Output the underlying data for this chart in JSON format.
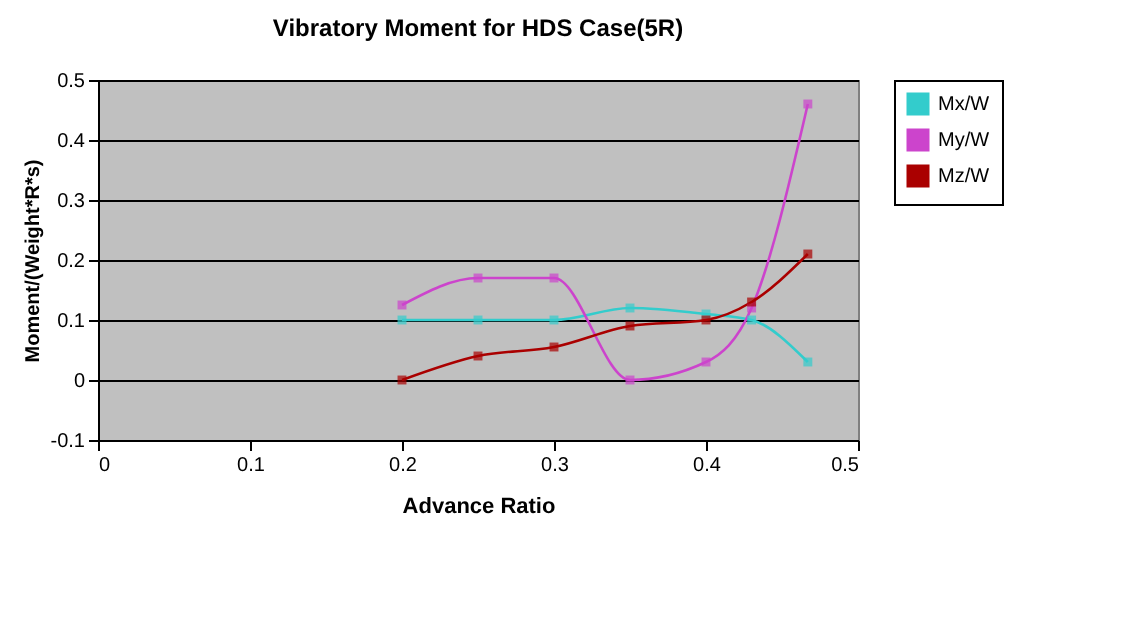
{
  "chart_data": {
    "type": "line",
    "title": "Vibratory Moment for HDS Case(5R)",
    "xlabel": "Advance Ratio",
    "ylabel": "Moment/(Weight*R*s)",
    "x": [
      0.2,
      0.25,
      0.3,
      0.35,
      0.4,
      0.43,
      0.467
    ],
    "series": [
      {
        "name": "Mx/W",
        "color": "#33cccc",
        "values": [
          0.1,
          0.1,
          0.1,
          0.12,
          0.11,
          0.1,
          0.03
        ]
      },
      {
        "name": "My/W",
        "color": "#cc44cc",
        "values": [
          0.125,
          0.17,
          0.17,
          0.0,
          0.03,
          0.12,
          0.46
        ]
      },
      {
        "name": "Mz/W",
        "color": "#aa0000",
        "values": [
          0.0,
          0.04,
          0.055,
          0.09,
          0.1,
          0.13,
          0.21
        ]
      }
    ],
    "xlim": [
      0,
      0.5
    ],
    "xticks": [
      0,
      0.1,
      0.2,
      0.3,
      0.4,
      0.5
    ],
    "ylim": [
      -0.1,
      0.5
    ],
    "yticks": [
      -0.1,
      0,
      0.1,
      0.2,
      0.3,
      0.4,
      0.5
    ],
    "grid": "y",
    "legend": "right",
    "marker": "square"
  }
}
